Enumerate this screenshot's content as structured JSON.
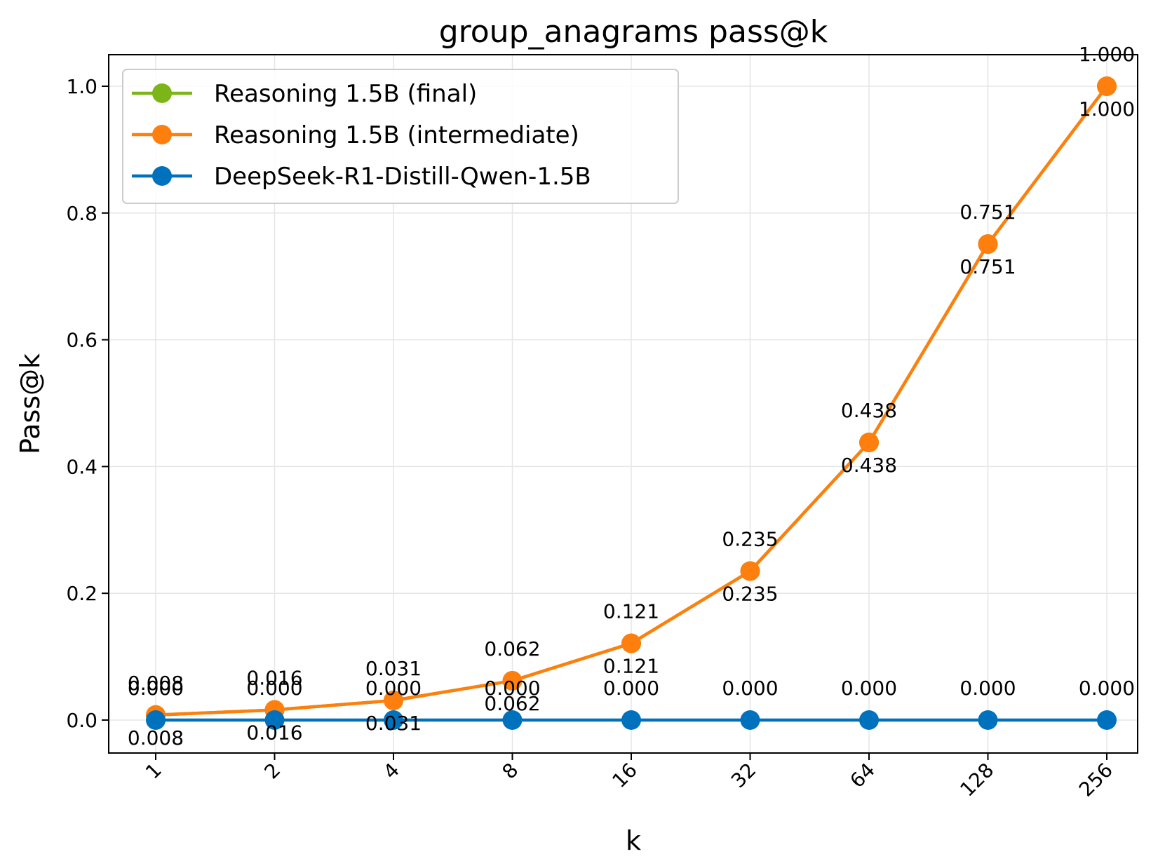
{
  "chart_data": {
    "type": "line",
    "title": "group_anagrams pass@k",
    "xlabel": "k",
    "ylabel": "Pass@k",
    "categories": [
      "1",
      "2",
      "4",
      "8",
      "16",
      "32",
      "64",
      "128",
      "256"
    ],
    "ylim": [
      -0.05,
      1.05
    ],
    "yticks": [
      "0.0",
      "0.2",
      "0.4",
      "0.6",
      "0.8",
      "1.0"
    ],
    "grid": true,
    "legend_position": "top-left",
    "series": [
      {
        "name": "Reasoning 1.5B (final)",
        "color": "#7cb518",
        "values": [
          0.008,
          0.016,
          0.031,
          0.062,
          0.121,
          0.235,
          0.438,
          0.751,
          1.0
        ],
        "labels": [
          "0.008",
          "0.016",
          "0.031",
          "0.062",
          "0.121",
          "0.235",
          "0.438",
          "0.751",
          "1.000"
        ],
        "label_position": "below"
      },
      {
        "name": "Reasoning 1.5B (intermediate)",
        "color": "#ff7f0e",
        "values": [
          0.008,
          0.016,
          0.031,
          0.062,
          0.121,
          0.235,
          0.438,
          0.751,
          1.0
        ],
        "labels": [
          "0.008",
          "0.016",
          "0.031",
          "0.062",
          "0.121",
          "0.235",
          "0.438",
          "0.751",
          "1.000"
        ],
        "label_position": "above"
      },
      {
        "name": "DeepSeek-R1-Distill-Qwen-1.5B",
        "color": "#0072bd",
        "values": [
          0,
          0,
          0,
          0,
          0,
          0,
          0,
          0,
          0
        ],
        "labels": [
          "0.000",
          "0.000",
          "0.000",
          "0.000",
          "0.000",
          "0.000",
          "0.000",
          "0.000",
          "0.000"
        ],
        "label_position": "above"
      }
    ]
  }
}
